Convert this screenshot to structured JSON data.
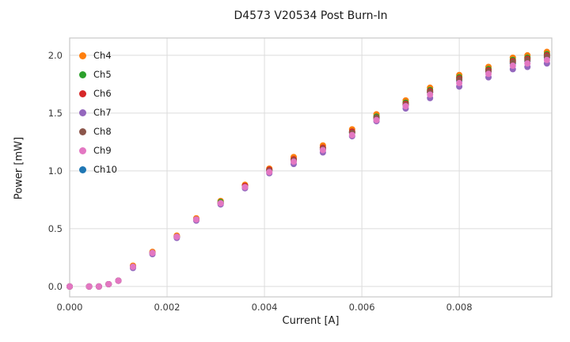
{
  "title": "D4573 V20534 Post Burn-In",
  "chart_data": {
    "type": "scatter",
    "title": "D4573 V20534 Post Burn-In",
    "xlabel": "Current [A]",
    "ylabel": "Power [mW]",
    "xlim": [
      0.0,
      0.0099
    ],
    "ylim": [
      -0.09,
      2.15
    ],
    "x_ticks": [
      0.0,
      0.002,
      0.004,
      0.006,
      0.008
    ],
    "x_tick_labels": [
      "0.000",
      "0.002",
      "0.004",
      "0.006",
      "0.008"
    ],
    "y_ticks": [
      0.0,
      0.5,
      1.0,
      1.5,
      2.0
    ],
    "y_tick_labels": [
      "0.0",
      "0.5",
      "1.0",
      "1.5",
      "2.0"
    ],
    "grid": true,
    "legend_position": "upper left",
    "x": [
      0.0,
      0.0004,
      0.0006,
      0.0008,
      0.001,
      0.0013,
      0.0017,
      0.0022,
      0.0026,
      0.0031,
      0.0036,
      0.0041,
      0.0046,
      0.0052,
      0.0058,
      0.0063,
      0.0069,
      0.0074,
      0.008,
      0.0086,
      0.0091,
      0.0094,
      0.0098
    ],
    "series": [
      {
        "name": "Ch4",
        "color": "#ff7f0e",
        "values": [
          0.0,
          0.0,
          0.0,
          0.02,
          0.05,
          0.18,
          0.3,
          0.44,
          0.59,
          0.74,
          0.88,
          1.02,
          1.12,
          1.22,
          1.36,
          1.49,
          1.61,
          1.72,
          1.83,
          1.9,
          1.98,
          2.0,
          2.03
        ]
      },
      {
        "name": "Ch5",
        "color": "#2ca02c",
        "values": [
          0.0,
          0.0,
          0.0,
          0.02,
          0.05,
          0.17,
          0.29,
          0.43,
          0.58,
          0.73,
          0.87,
          1.01,
          1.1,
          1.2,
          1.34,
          1.47,
          1.59,
          1.7,
          1.81,
          1.88,
          1.96,
          1.98,
          2.01
        ]
      },
      {
        "name": "Ch6",
        "color": "#d62728",
        "values": [
          0.0,
          0.0,
          0.0,
          0.02,
          0.05,
          0.17,
          0.29,
          0.43,
          0.58,
          0.72,
          0.87,
          1.01,
          1.1,
          1.2,
          1.34,
          1.46,
          1.58,
          1.69,
          1.8,
          1.87,
          1.95,
          1.97,
          2.0
        ]
      },
      {
        "name": "Ch7",
        "color": "#9467bd",
        "values": [
          0.0,
          0.0,
          0.0,
          0.02,
          0.05,
          0.16,
          0.28,
          0.42,
          0.57,
          0.71,
          0.85,
          0.98,
          1.06,
          1.16,
          1.3,
          1.43,
          1.54,
          1.63,
          1.73,
          1.81,
          1.88,
          1.9,
          1.93
        ]
      },
      {
        "name": "Ch8",
        "color": "#8c564b",
        "values": [
          0.0,
          0.0,
          0.0,
          0.02,
          0.05,
          0.17,
          0.29,
          0.43,
          0.58,
          0.72,
          0.86,
          1.0,
          1.09,
          1.19,
          1.33,
          1.46,
          1.57,
          1.68,
          1.79,
          1.86,
          1.94,
          1.96,
          1.99
        ]
      },
      {
        "name": "Ch9",
        "color": "#e377c2",
        "values": [
          0.0,
          0.0,
          0.0,
          0.02,
          0.05,
          0.17,
          0.29,
          0.43,
          0.58,
          0.72,
          0.86,
          0.99,
          1.08,
          1.18,
          1.31,
          1.44,
          1.56,
          1.66,
          1.76,
          1.84,
          1.91,
          1.93,
          1.96
        ]
      },
      {
        "name": "Ch10",
        "color": "#1f77b4",
        "values": [
          0.0,
          0.0,
          0.0,
          0.02,
          0.05,
          0.17,
          0.29,
          0.43,
          0.58,
          0.72,
          0.86,
          1.0,
          1.09,
          1.19,
          1.33,
          1.45,
          1.57,
          1.68,
          1.78,
          1.86,
          1.93,
          1.95,
          1.98
        ]
      }
    ]
  },
  "style": {
    "grid_color": "#dcdcdc",
    "border_color": "#c8c8c8",
    "background": "#ffffff",
    "tick_label_color": "#3a3a3a"
  }
}
